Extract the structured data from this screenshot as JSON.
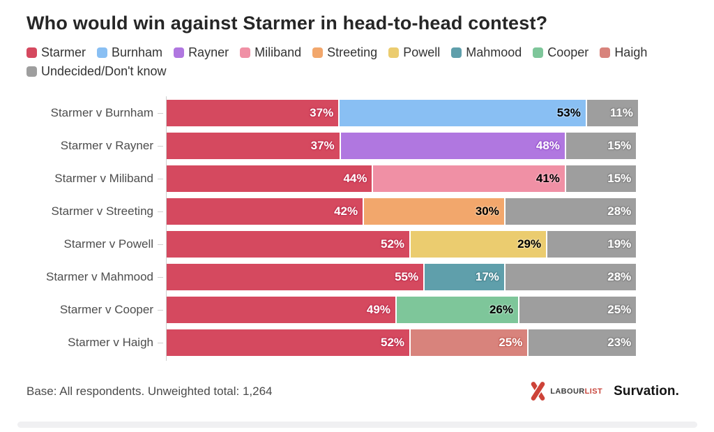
{
  "title": "Who would win against Starmer in head-to-head contest?",
  "palette": {
    "Starmer": {
      "color": "#d5495f",
      "text_color": "#ffffff",
      "halo": "#c23350"
    },
    "Burnham": {
      "color": "#89bff3",
      "text_color": "#000000",
      "halo": "#a9d2f8"
    },
    "Rayner": {
      "color": "#b077e0",
      "text_color": "#ffffff",
      "halo": "#9a58cf"
    },
    "Miliband": {
      "color": "#f090a5",
      "text_color": "#000000",
      "halo": "#f6b0c0"
    },
    "Streeting": {
      "color": "#f2a76c",
      "text_color": "#000000",
      "halo": "#f6c294"
    },
    "Powell": {
      "color": "#ebcc6f",
      "text_color": "#000000",
      "halo": "#f2dd9c"
    },
    "Mahmood": {
      "color": "#5f9fab",
      "text_color": "#ffffff",
      "halo": "#4a8692"
    },
    "Cooper": {
      "color": "#7ec69a",
      "text_color": "#000000",
      "halo": "#a8d9bc"
    },
    "Haigh": {
      "color": "#d8837c",
      "text_color": "#ffffff",
      "halo": "#c5635b"
    },
    "Undecided/Don't know": {
      "color": "#9e9e9e",
      "text_color": "#ffffff",
      "halo": "#828282"
    }
  },
  "chart_data": {
    "type": "bar",
    "stacked": true,
    "orientation": "horizontal",
    "value_suffix": "%",
    "xlim": [
      0,
      101
    ],
    "legend_position": "top",
    "grid": false,
    "title": "Who would win against Starmer in head-to-head contest?",
    "legend_entries": [
      "Starmer",
      "Burnham",
      "Rayner",
      "Miliband",
      "Streeting",
      "Powell",
      "Mahmood",
      "Cooper",
      "Haigh",
      "Undecided/Don't know"
    ],
    "categories": [
      "Starmer v Burnham",
      "Starmer v Rayner",
      "Starmer v Miliband",
      "Starmer v Streeting",
      "Starmer v Powell",
      "Starmer v Mahmood",
      "Starmer v Cooper",
      "Starmer v Haigh"
    ],
    "rows": [
      {
        "label": "Starmer v Burnham",
        "segments": [
          {
            "name": "Starmer",
            "value": 37
          },
          {
            "name": "Burnham",
            "value": 53
          },
          {
            "name": "Undecided/Don't know",
            "value": 11
          }
        ]
      },
      {
        "label": "Starmer v Rayner",
        "segments": [
          {
            "name": "Starmer",
            "value": 37
          },
          {
            "name": "Rayner",
            "value": 48
          },
          {
            "name": "Undecided/Don't know",
            "value": 15
          }
        ]
      },
      {
        "label": "Starmer v Miliband",
        "segments": [
          {
            "name": "Starmer",
            "value": 44
          },
          {
            "name": "Miliband",
            "value": 41
          },
          {
            "name": "Undecided/Don't know",
            "value": 15
          }
        ]
      },
      {
        "label": "Starmer v Streeting",
        "segments": [
          {
            "name": "Starmer",
            "value": 42
          },
          {
            "name": "Streeting",
            "value": 30
          },
          {
            "name": "Undecided/Don't know",
            "value": 28
          }
        ]
      },
      {
        "label": "Starmer v Powell",
        "segments": [
          {
            "name": "Starmer",
            "value": 52
          },
          {
            "name": "Powell",
            "value": 29
          },
          {
            "name": "Undecided/Don't know",
            "value": 19
          }
        ]
      },
      {
        "label": "Starmer v Mahmood",
        "segments": [
          {
            "name": "Starmer",
            "value": 55
          },
          {
            "name": "Mahmood",
            "value": 17
          },
          {
            "name": "Undecided/Don't know",
            "value": 28
          }
        ]
      },
      {
        "label": "Starmer v Cooper",
        "segments": [
          {
            "name": "Starmer",
            "value": 49
          },
          {
            "name": "Cooper",
            "value": 26
          },
          {
            "name": "Undecided/Don't know",
            "value": 25
          }
        ]
      },
      {
        "label": "Starmer v Haigh",
        "segments": [
          {
            "name": "Starmer",
            "value": 52
          },
          {
            "name": "Haigh",
            "value": 25
          },
          {
            "name": "Undecided/Don't know",
            "value": 23
          }
        ]
      }
    ]
  },
  "footer": {
    "note": "Base: All respondents. Unweighted total: 1,264",
    "labourlist": {
      "labour": "LABOUR",
      "list": "LIST"
    },
    "survation": "Survation.",
    "brand_red": "#cd4338"
  }
}
